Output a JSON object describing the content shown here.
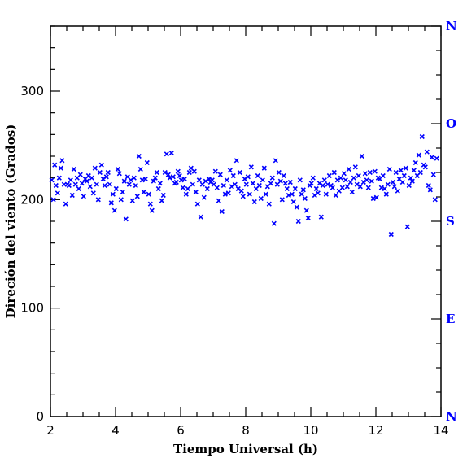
{
  "colors": {
    "points": "#0000ff",
    "axes": "#000000",
    "compass": "#0000ff"
  },
  "chart_data": {
    "type": "scatter",
    "title": "",
    "xlabel": "Tiempo Universal (h)",
    "ylabel": "Direción del viento (Grados)",
    "xlim": [
      2,
      14
    ],
    "ylim": [
      0,
      360
    ],
    "xticks": [
      "2",
      "4",
      "6",
      "8",
      "10",
      "12",
      "14"
    ],
    "yticks": [
      "0",
      "100",
      "200",
      "300"
    ],
    "right_axis_labels": [
      {
        "label": "N",
        "value": 0
      },
      {
        "label": "E",
        "value": 90
      },
      {
        "label": "S",
        "value": 180
      },
      {
        "label": "O",
        "value": 270
      },
      {
        "label": "N",
        "value": 360
      }
    ],
    "marker": "x",
    "grid": false,
    "series": [
      {
        "points": [
          [
            2.04,
            218
          ],
          [
            2.09,
            200
          ],
          [
            2.13,
            232
          ],
          [
            2.17,
            213
          ],
          [
            2.22,
            206
          ],
          [
            2.27,
            220
          ],
          [
            2.32,
            229
          ],
          [
            2.36,
            236
          ],
          [
            2.42,
            214
          ],
          [
            2.47,
            196
          ],
          [
            2.52,
            214
          ],
          [
            2.57,
            213
          ],
          [
            2.62,
            218
          ],
          [
            2.67,
            204
          ],
          [
            2.72,
            228
          ],
          [
            2.77,
            214
          ],
          [
            2.82,
            220
          ],
          [
            2.87,
            210
          ],
          [
            2.92,
            223
          ],
          [
            2.97,
            215
          ],
          [
            3.02,
            203
          ],
          [
            3.07,
            219
          ],
          [
            3.12,
            217
          ],
          [
            3.17,
            222
          ],
          [
            3.22,
            212
          ],
          [
            3.27,
            220
          ],
          [
            3.32,
            206
          ],
          [
            3.37,
            229
          ],
          [
            3.42,
            214
          ],
          [
            3.47,
            200
          ],
          [
            3.52,
            225
          ],
          [
            3.57,
            232
          ],
          [
            3.62,
            219
          ],
          [
            3.67,
            213
          ],
          [
            3.72,
            221
          ],
          [
            3.77,
            225
          ],
          [
            3.82,
            214
          ],
          [
            3.87,
            197
          ],
          [
            3.92,
            205
          ],
          [
            3.97,
            190
          ],
          [
            4.02,
            210
          ],
          [
            4.07,
            228
          ],
          [
            4.12,
            224
          ],
          [
            4.17,
            200
          ],
          [
            4.22,
            207
          ],
          [
            4.27,
            217
          ],
          [
            4.32,
            182
          ],
          [
            4.37,
            221
          ],
          [
            4.42,
            214
          ],
          [
            4.47,
            218
          ],
          [
            4.52,
            199
          ],
          [
            4.57,
            220
          ],
          [
            4.62,
            213
          ],
          [
            4.67,
            203
          ],
          [
            4.72,
            240
          ],
          [
            4.77,
            228
          ],
          [
            4.82,
            218
          ],
          [
            4.87,
            207
          ],
          [
            4.92,
            219
          ],
          [
            4.97,
            234
          ],
          [
            5.02,
            205
          ],
          [
            5.07,
            196
          ],
          [
            5.12,
            190
          ],
          [
            5.17,
            217
          ],
          [
            5.22,
            220
          ],
          [
            5.27,
            225
          ],
          [
            5.32,
            210
          ],
          [
            5.37,
            215
          ],
          [
            5.42,
            199
          ],
          [
            5.47,
            204
          ],
          [
            5.52,
            225
          ],
          [
            5.57,
            242
          ],
          [
            5.62,
            223
          ],
          [
            5.67,
            220
          ],
          [
            5.72,
            243
          ],
          [
            5.77,
            221
          ],
          [
            5.82,
            215
          ],
          [
            5.87,
            216
          ],
          [
            5.92,
            226
          ],
          [
            5.97,
            222
          ],
          [
            6.02,
            218
          ],
          [
            6.07,
            211
          ],
          [
            6.12,
            219
          ],
          [
            6.17,
            205
          ],
          [
            6.22,
            210
          ],
          [
            6.27,
            225
          ],
          [
            6.32,
            229
          ],
          [
            6.37,
            214
          ],
          [
            6.42,
            226
          ],
          [
            6.47,
            207
          ],
          [
            6.52,
            196
          ],
          [
            6.57,
            218
          ],
          [
            6.62,
            184
          ],
          [
            6.67,
            214
          ],
          [
            6.72,
            202
          ],
          [
            6.77,
            217
          ],
          [
            6.82,
            210
          ],
          [
            6.87,
            219
          ],
          [
            6.92,
            216
          ],
          [
            6.97,
            218
          ],
          [
            7.02,
            214
          ],
          [
            7.07,
            226
          ],
          [
            7.12,
            211
          ],
          [
            7.17,
            199
          ],
          [
            7.22,
            223
          ],
          [
            7.27,
            189
          ],
          [
            7.32,
            213
          ],
          [
            7.37,
            205
          ],
          [
            7.42,
            218
          ],
          [
            7.47,
            206
          ],
          [
            7.52,
            227
          ],
          [
            7.57,
            212
          ],
          [
            7.62,
            222
          ],
          [
            7.67,
            214
          ],
          [
            7.72,
            236
          ],
          [
            7.77,
            210
          ],
          [
            7.82,
            225
          ],
          [
            7.87,
            208
          ],
          [
            7.92,
            203
          ],
          [
            7.97,
            219
          ],
          [
            8.02,
            214
          ],
          [
            8.07,
            221
          ],
          [
            8.12,
            205
          ],
          [
            8.17,
            230
          ],
          [
            8.22,
            215
          ],
          [
            8.27,
            198
          ],
          [
            8.32,
            210
          ],
          [
            8.37,
            222
          ],
          [
            8.42,
            213
          ],
          [
            8.47,
            201
          ],
          [
            8.52,
            218
          ],
          [
            8.57,
            229
          ],
          [
            8.62,
            205
          ],
          [
            8.67,
            212
          ],
          [
            8.72,
            196
          ],
          [
            8.77,
            215
          ],
          [
            8.82,
            220
          ],
          [
            8.87,
            178
          ],
          [
            8.92,
            236
          ],
          [
            8.97,
            214
          ],
          [
            9.02,
            225
          ],
          [
            9.07,
            217
          ],
          [
            9.12,
            200
          ],
          [
            9.17,
            222
          ],
          [
            9.22,
            215
          ],
          [
            9.27,
            210
          ],
          [
            9.32,
            204
          ],
          [
            9.37,
            216
          ],
          [
            9.42,
            205
          ],
          [
            9.47,
            198
          ],
          [
            9.52,
            210
          ],
          [
            9.57,
            193
          ],
          [
            9.62,
            180
          ],
          [
            9.67,
            218
          ],
          [
            9.72,
            205
          ],
          [
            9.77,
            209
          ],
          [
            9.82,
            201
          ],
          [
            9.87,
            190
          ],
          [
            9.92,
            183
          ],
          [
            9.97,
            213
          ],
          [
            10.02,
            215
          ],
          [
            10.07,
            220
          ],
          [
            10.12,
            204
          ],
          [
            10.17,
            210
          ],
          [
            10.22,
            206
          ],
          [
            10.27,
            215
          ],
          [
            10.32,
            184
          ],
          [
            10.37,
            213
          ],
          [
            10.42,
            218
          ],
          [
            10.47,
            205
          ],
          [
            10.52,
            214
          ],
          [
            10.57,
            222
          ],
          [
            10.62,
            213
          ],
          [
            10.67,
            211
          ],
          [
            10.72,
            225
          ],
          [
            10.77,
            204
          ],
          [
            10.82,
            218
          ],
          [
            10.87,
            208
          ],
          [
            10.92,
            220
          ],
          [
            10.97,
            211
          ],
          [
            11.02,
            224
          ],
          [
            11.07,
            218
          ],
          [
            11.12,
            212
          ],
          [
            11.17,
            228
          ],
          [
            11.22,
            216
          ],
          [
            11.27,
            207
          ],
          [
            11.32,
            220
          ],
          [
            11.37,
            230
          ],
          [
            11.42,
            214
          ],
          [
            11.47,
            222
          ],
          [
            11.52,
            212
          ],
          [
            11.57,
            240
          ],
          [
            11.62,
            216
          ],
          [
            11.67,
            224
          ],
          [
            11.72,
            218
          ],
          [
            11.77,
            211
          ],
          [
            11.82,
            225
          ],
          [
            11.87,
            217
          ],
          [
            11.92,
            201
          ],
          [
            11.97,
            226
          ],
          [
            12.02,
            202
          ],
          [
            12.07,
            220
          ],
          [
            12.12,
            219
          ],
          [
            12.17,
            211
          ],
          [
            12.22,
            222
          ],
          [
            12.27,
            210
          ],
          [
            12.32,
            205
          ],
          [
            12.37,
            214
          ],
          [
            12.42,
            228
          ],
          [
            12.47,
            168
          ],
          [
            12.52,
            216
          ],
          [
            12.57,
            212
          ],
          [
            12.62,
            225
          ],
          [
            12.67,
            208
          ],
          [
            12.72,
            219
          ],
          [
            12.77,
            227
          ],
          [
            12.82,
            216
          ],
          [
            12.87,
            222
          ],
          [
            12.92,
            229
          ],
          [
            12.97,
            175
          ],
          [
            13.02,
            213
          ],
          [
            13.07,
            220
          ],
          [
            13.12,
            217
          ],
          [
            13.17,
            227
          ],
          [
            13.22,
            234
          ],
          [
            13.27,
            222
          ],
          [
            13.32,
            241
          ],
          [
            13.37,
            225
          ],
          [
            13.42,
            258
          ],
          [
            13.47,
            232
          ],
          [
            13.52,
            230
          ],
          [
            13.57,
            244
          ],
          [
            13.62,
            213
          ],
          [
            13.67,
            209
          ],
          [
            13.72,
            239
          ],
          [
            13.77,
            223
          ],
          [
            13.82,
            200
          ],
          [
            13.87,
            238
          ]
        ]
      }
    ]
  }
}
